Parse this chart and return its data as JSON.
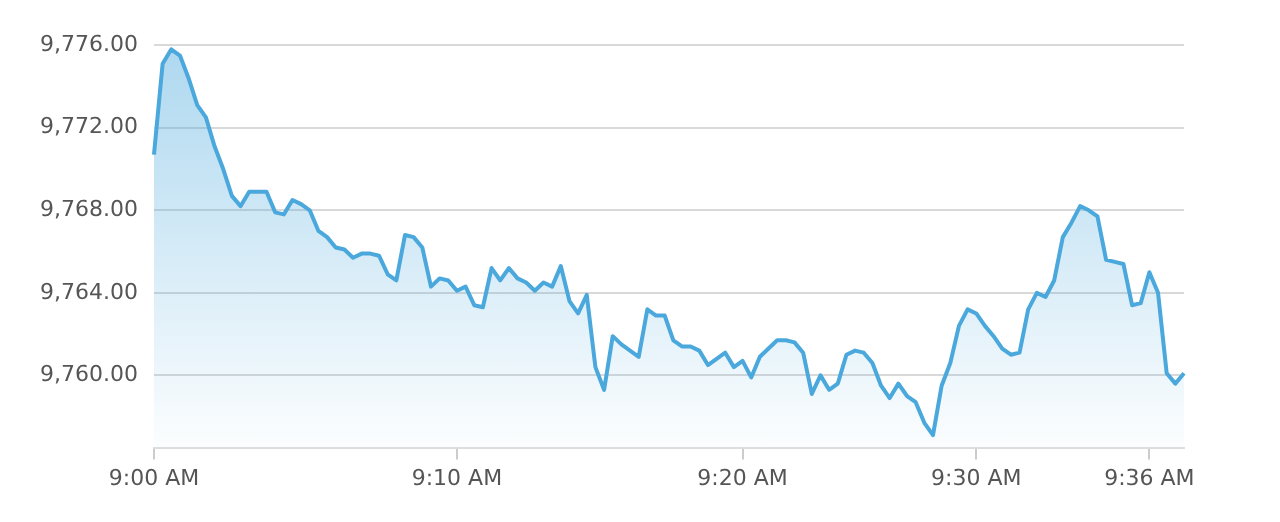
{
  "chart_data": {
    "type": "area",
    "categories": [
      "9:00 AM",
      null,
      null,
      null,
      null,
      null,
      null,
      null,
      null,
      null,
      null,
      null,
      null,
      null,
      null,
      null,
      null,
      null,
      null,
      null,
      null,
      null,
      null,
      null,
      null,
      null,
      null,
      null,
      null,
      null,
      null,
      null,
      null,
      null,
      null,
      "9:10 AM",
      null,
      null,
      null,
      null,
      null,
      null,
      null,
      null,
      null,
      null,
      null,
      null,
      null,
      null,
      null,
      null,
      null,
      null,
      null,
      null,
      null,
      null,
      null,
      null,
      null,
      null,
      null,
      null,
      null,
      null,
      null,
      null,
      "9:20 AM",
      null,
      null,
      null,
      null,
      null,
      null,
      null,
      null,
      null,
      null,
      null,
      null,
      null,
      null,
      null,
      null,
      null,
      null,
      null,
      null,
      null,
      null,
      null,
      null,
      null,
      null,
      "9:30 AM",
      null,
      null,
      null,
      null,
      null,
      null,
      null,
      null,
      null,
      null,
      null,
      null,
      null,
      null,
      null,
      null,
      null,
      null,
      null,
      "9:36 AM",
      null,
      null,
      null,
      null
    ],
    "series": [
      {
        "color": "#4aa8dc",
        "values": [
          9770.7,
          9775.1,
          9775.8,
          9775.5,
          9774.4,
          9773.1,
          9772.5,
          9771.1,
          9770.0,
          9768.7,
          9768.2,
          9768.9,
          9768.9,
          9768.9,
          9767.9,
          9767.8,
          9768.5,
          9768.3,
          9768.0,
          9767.0,
          9766.7,
          9766.2,
          9766.1,
          9765.7,
          9765.9,
          9765.9,
          9765.8,
          9764.9,
          9764.6,
          9766.8,
          9766.7,
          9766.2,
          9764.3,
          9764.7,
          9764.6,
          9764.1,
          9764.3,
          9763.4,
          9763.3,
          9765.2,
          9764.6,
          9765.2,
          9764.7,
          9764.5,
          9764.1,
          9764.5,
          9764.3,
          9765.3,
          9763.6,
          9763.0,
          9763.9,
          9760.4,
          9759.3,
          9761.9,
          9761.5,
          9761.2,
          9760.9,
          9763.2,
          9762.9,
          9762.9,
          9761.7,
          9761.4,
          9761.4,
          9761.2,
          9760.5,
          9760.8,
          9761.1,
          9760.4,
          9760.7,
          9759.9,
          9760.9,
          9761.3,
          9761.7,
          9761.7,
          9761.6,
          9761.1,
          9759.1,
          9760.0,
          9759.3,
          9759.6,
          9761.0,
          9761.2,
          9761.1,
          9760.6,
          9759.5,
          9758.9,
          9759.6,
          9759.0,
          9758.7,
          9757.7,
          9757.1,
          9759.5,
          9760.6,
          9762.4,
          9763.2,
          9763.0,
          9762.4,
          9761.9,
          9761.3,
          9761.0,
          9761.1,
          9763.2,
          9764.0,
          9763.8,
          9764.6,
          9766.7,
          9767.4,
          9768.2,
          9768.0,
          9767.7,
          9765.6,
          9765.5,
          9765.4,
          9763.4,
          9763.5,
          9765.0,
          9764.0,
          9760.1,
          9759.6,
          9760.1
        ]
      }
    ],
    "ylim": [
      9756.5,
      9776
    ],
    "yticks": [
      {
        "value": 9760,
        "label": "9,760.00"
      },
      {
        "value": 9764,
        "label": "9,764.00"
      },
      {
        "value": 9768,
        "label": "9,768.00"
      },
      {
        "value": 9772,
        "label": "9,772.00"
      },
      {
        "value": 9776,
        "label": "9,776.00"
      }
    ],
    "grid": "y",
    "legend": false,
    "marker": "none",
    "line_style": "solid"
  }
}
